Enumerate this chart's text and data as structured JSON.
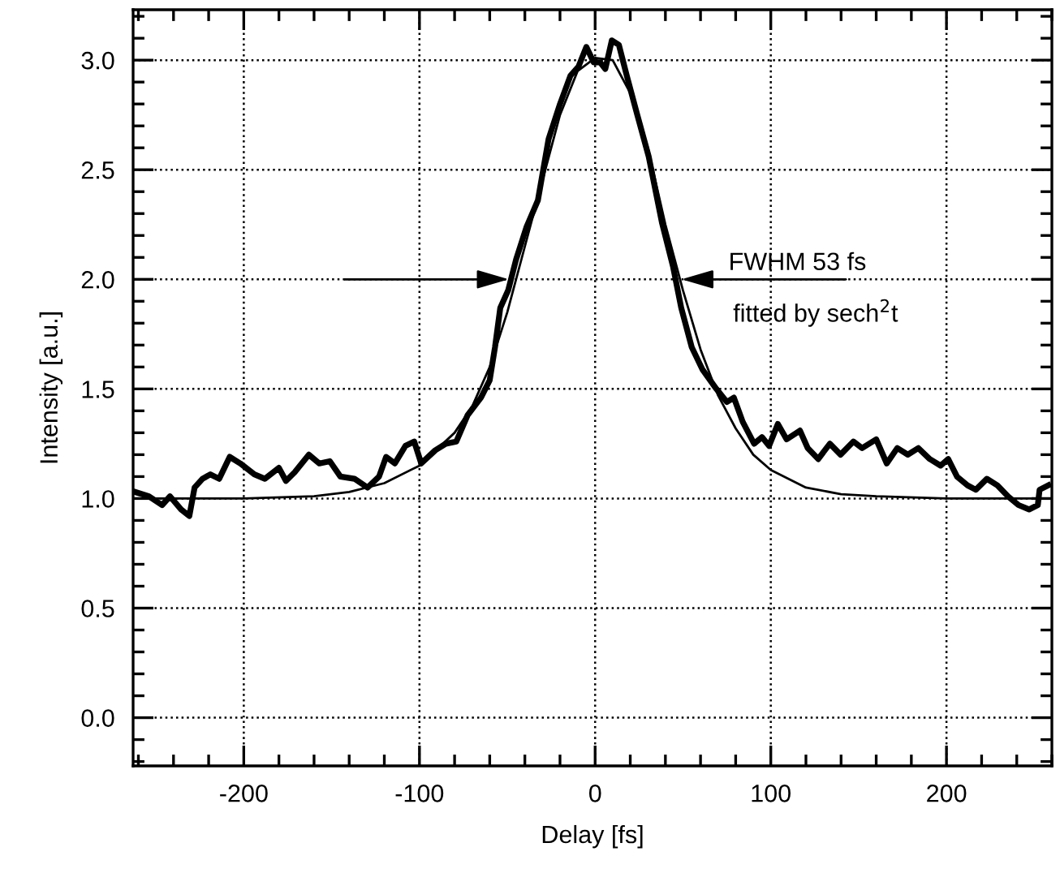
{
  "chart_data": {
    "type": "line",
    "xlabel": "Delay [fs]",
    "ylabel": "Intensity [a.u.]",
    "xlim": [
      -263,
      260
    ],
    "ylim": [
      -0.22,
      3.23
    ],
    "xticks": [
      {
        "value": -260,
        "label": null
      },
      {
        "value": -240,
        "label": null
      },
      {
        "value": -220,
        "label": null
      },
      -200,
      {
        "value": -180,
        "label": null
      },
      {
        "value": -160,
        "label": null
      },
      {
        "value": -140,
        "label": null
      },
      {
        "value": -120,
        "label": null
      },
      -100,
      {
        "value": -80,
        "label": null
      },
      {
        "value": -60,
        "label": null
      },
      {
        "value": -40,
        "label": null
      },
      {
        "value": -20,
        "label": null
      },
      0,
      {
        "value": 20,
        "label": null
      },
      {
        "value": 40,
        "label": null
      },
      {
        "value": 60,
        "label": null
      },
      {
        "value": 80,
        "label": null
      },
      100,
      {
        "value": 120,
        "label": null
      },
      {
        "value": 140,
        "label": null
      },
      {
        "value": 160,
        "label": null
      },
      {
        "value": 180,
        "label": null
      },
      200,
      {
        "value": 220,
        "label": null
      },
      {
        "value": 240,
        "label": null
      },
      {
        "value": 260,
        "label": null
      }
    ],
    "yticks": [
      {
        "value": -0.2,
        "label": null
      },
      {
        "value": -0.1,
        "label": null
      },
      {
        "value": 0,
        "label": "0.0"
      },
      {
        "value": 0.1,
        "label": null
      },
      {
        "value": 0.2,
        "label": null
      },
      {
        "value": 0.3,
        "label": null
      },
      {
        "value": 0.4,
        "label": null
      },
      {
        "value": 0.5,
        "label": "0.5"
      },
      {
        "value": 0.6,
        "label": null
      },
      {
        "value": 0.7,
        "label": null
      },
      {
        "value": 0.8,
        "label": null
      },
      {
        "value": 0.9,
        "label": null
      },
      {
        "value": 1.0,
        "label": "1.0"
      },
      {
        "value": 1.1,
        "label": null
      },
      {
        "value": 1.2,
        "label": null
      },
      {
        "value": 1.3,
        "label": null
      },
      {
        "value": 1.4,
        "label": null
      },
      {
        "value": 1.5,
        "label": "1.5"
      },
      {
        "value": 1.6,
        "label": null
      },
      {
        "value": 1.7,
        "label": null
      },
      {
        "value": 1.8,
        "label": null
      },
      {
        "value": 1.9,
        "label": null
      },
      {
        "value": 2.0,
        "label": "2.0"
      },
      {
        "value": 2.1,
        "label": null
      },
      {
        "value": 2.2,
        "label": null
      },
      {
        "value": 2.3,
        "label": null
      },
      {
        "value": 2.4,
        "label": null
      },
      {
        "value": 2.5,
        "label": "2.5"
      },
      {
        "value": 2.6,
        "label": null
      },
      {
        "value": 2.7,
        "label": null
      },
      {
        "value": 2.8,
        "label": null
      },
      {
        "value": 2.9,
        "label": null
      },
      {
        "value": 3.0,
        "label": "3.0"
      },
      {
        "value": 3.1,
        "label": null
      },
      {
        "value": 3.2,
        "label": null
      }
    ],
    "grid": true,
    "legend": false,
    "marker": "none",
    "line_style": "solid",
    "series": [
      {
        "color": "#000000",
        "x": [
          -262,
          -254,
          -246.5,
          -242,
          -235.7,
          -231,
          -228,
          -223.5,
          -219,
          -214,
          -208,
          -202,
          -194,
          -188,
          -180,
          -176,
          -171,
          -163,
          -157,
          -151,
          -145,
          -137,
          -129.5,
          -123,
          -119,
          -114,
          -108,
          -103,
          -99,
          -91,
          -85,
          -79,
          -72.6,
          -65,
          -60,
          -57,
          -54,
          -49.5,
          -45,
          -39,
          -32.6,
          -26.5,
          -20,
          -14,
          -9.5,
          -5,
          -0.8,
          2.8,
          5.8,
          9.5,
          13.5,
          18,
          24,
          30.5,
          38,
          44.3,
          49,
          55,
          61,
          69,
          75,
          79,
          84,
          90.5,
          95,
          99,
          104,
          109,
          116.6,
          121,
          127,
          133.6,
          139.7,
          147,
          152,
          160,
          166,
          172,
          178,
          184,
          190.5,
          196.6,
          201,
          206,
          212,
          216.7,
          223,
          229,
          235,
          241,
          247,
          252,
          253,
          258
        ],
        "values": [
          1.03,
          1.01,
          0.97,
          1.01,
          0.95,
          0.92,
          1.05,
          1.09,
          1.11,
          1.09,
          1.19,
          1.16,
          1.11,
          1.09,
          1.14,
          1.08,
          1.12,
          1.2,
          1.16,
          1.17,
          1.1,
          1.09,
          1.05,
          1.1,
          1.19,
          1.16,
          1.24,
          1.26,
          1.16,
          1.22,
          1.25,
          1.26,
          1.38,
          1.46,
          1.54,
          1.69,
          1.87,
          1.95,
          2.09,
          2.24,
          2.36,
          2.64,
          2.8,
          2.93,
          2.97,
          3.06,
          2.99,
          2.99,
          2.96,
          3.09,
          3.07,
          2.93,
          2.75,
          2.56,
          2.26,
          2.06,
          1.87,
          1.69,
          1.59,
          1.5,
          1.44,
          1.46,
          1.35,
          1.25,
          1.28,
          1.24,
          1.34,
          1.27,
          1.31,
          1.23,
          1.18,
          1.25,
          1.2,
          1.26,
          1.23,
          1.27,
          1.16,
          1.23,
          1.2,
          1.23,
          1.18,
          1.15,
          1.18,
          1.1,
          1.06,
          1.04,
          1.09,
          1.06,
          1.01,
          0.97,
          0.95,
          0.97,
          1.04,
          1.06
        ]
      },
      {
        "color": "#000000",
        "x": [
          -260,
          -200,
          -160,
          -140,
          -120,
          -100,
          -80,
          -70,
          -60,
          -50,
          -40,
          -30,
          -20,
          -10,
          0,
          10,
          20,
          30,
          40,
          50,
          60,
          70,
          80,
          90,
          100,
          120,
          140,
          160,
          200,
          260
        ],
        "values": [
          1.0,
          1.0,
          1.01,
          1.03,
          1.07,
          1.15,
          1.3,
          1.42,
          1.6,
          1.85,
          2.15,
          2.45,
          2.75,
          2.95,
          3.01,
          3.0,
          2.85,
          2.6,
          2.25,
          1.95,
          1.68,
          1.47,
          1.32,
          1.2,
          1.13,
          1.05,
          1.02,
          1.01,
          1.0,
          1.0
        ]
      }
    ],
    "annotations": [
      {
        "text": "FWHM 53 fs",
        "x": 49,
        "y": 2.0
      },
      "fitted by sech$^{2}$t"
    ]
  }
}
